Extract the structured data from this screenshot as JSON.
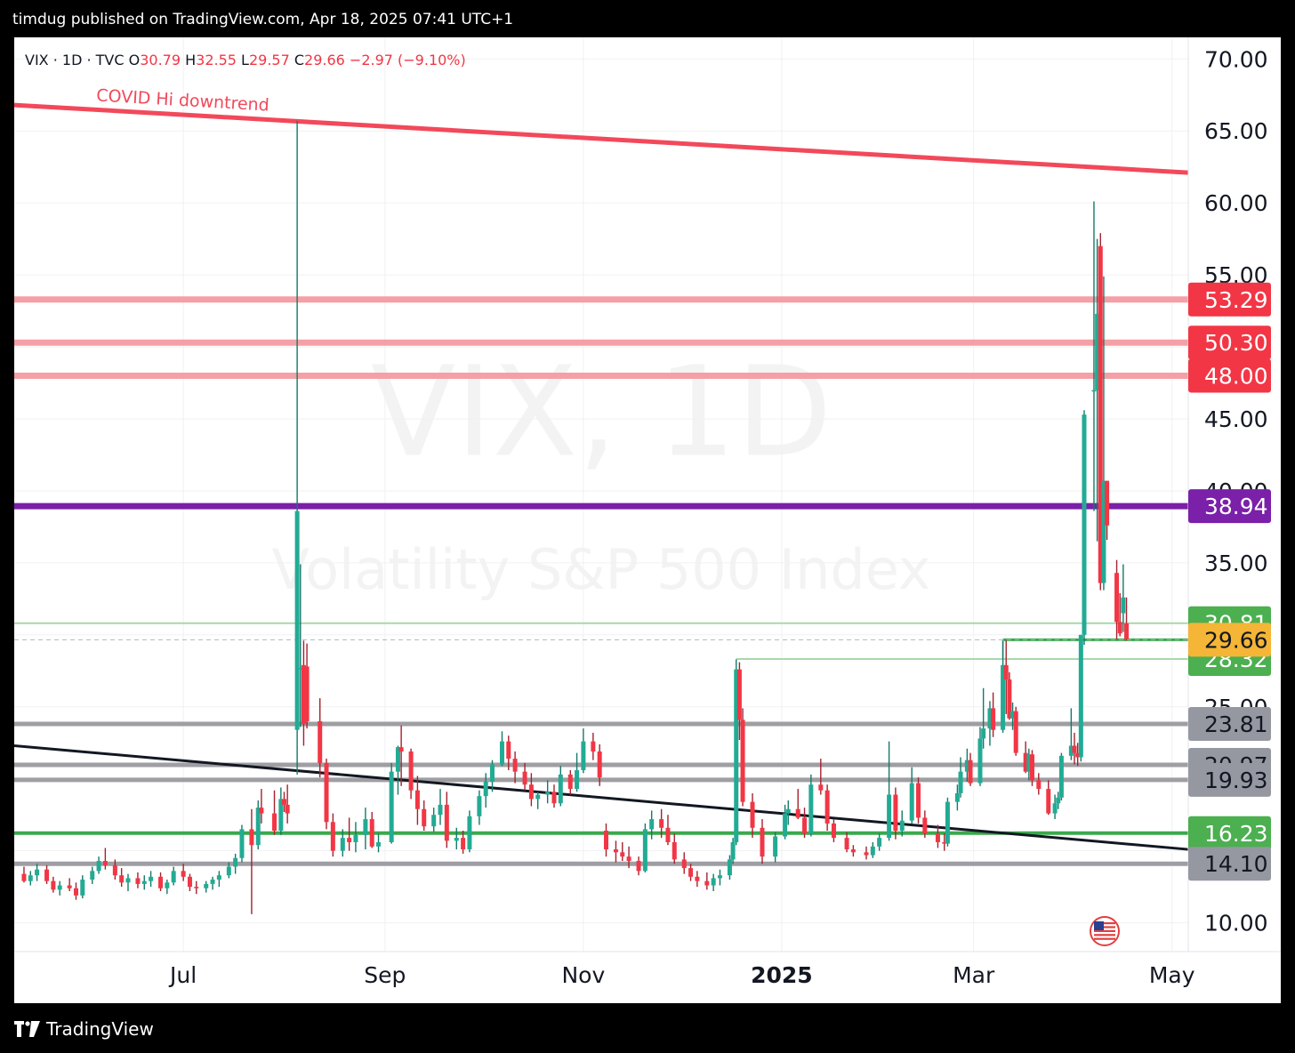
{
  "header": {
    "publisher": "timdug published on TradingView.com, Apr 18, 2025 07:41 UTC+1"
  },
  "footer": {
    "brand": "TradingView"
  },
  "colors": {
    "up": "#22ab94",
    "down": "#f23645",
    "upWick": "#137a69",
    "downWick": "#a7202e",
    "pink": "#f4a0a6",
    "red": "#f2495a",
    "purple": "#7b20a8",
    "greenLine": "#3aa84c",
    "lightGreen": "#a8d8ab",
    "gray": "#9e9ea3",
    "trendRed": "#f2495a",
    "black": "#131722",
    "goldBadge": "#f5b536",
    "greenBadge": "#4caf50",
    "redBadge": "#f23645",
    "purpleBadge": "#7b20a8",
    "grayBadge": "#9598a1"
  },
  "legend": {
    "symbol": "VIX · 1D · TVC",
    "o_label": "O",
    "o_value": "30.79",
    "h_label": "H",
    "h_value": "32.55",
    "l_label": "L",
    "l_value": "29.57",
    "c_label": "C",
    "c_value": "29.66",
    "change": "−2.97 (−9.10%)"
  },
  "watermark": {
    "line1": "VIX, 1D",
    "line2": "Volatility S&P 500 Index"
  },
  "icons": {
    "flag": "us-flag-icon",
    "logo": "tradingview-logo-icon"
  },
  "chart_data": {
    "type": "candlestick",
    "symbol": "VIX",
    "ylim": [
      8,
      71.5
    ],
    "y_ticks": [
      "10.00",
      "25.00",
      "30.00",
      "35.00",
      "40.00",
      "45.00",
      "55.00",
      "60.00",
      "65.00",
      "70.00"
    ],
    "x_ticks": [
      {
        "label": "Jul",
        "date": "2024-07-01",
        "bold": false
      },
      {
        "label": "Sep",
        "date": "2024-09-01",
        "bold": false
      },
      {
        "label": "Nov",
        "date": "2024-11-01",
        "bold": false
      },
      {
        "label": "2025",
        "date": "2025-01-01",
        "bold": true
      },
      {
        "label": "Mar",
        "date": "2025-03-01",
        "bold": false
      },
      {
        "label": "May",
        "date": "2025-05-01",
        "bold": false
      }
    ],
    "date_range": [
      "2024-05-10",
      "2025-05-06"
    ],
    "price_lines": [
      {
        "value": 53.29,
        "label": "53.29",
        "color": "pink",
        "badge": "redBadge"
      },
      {
        "value": 50.3,
        "label": "50.30",
        "color": "pink",
        "badge": "redBadge"
      },
      {
        "value": 48.0,
        "label": "48.00",
        "color": "pink",
        "badge": "redBadge"
      },
      {
        "value": 38.94,
        "label": "38.94",
        "color": "purple",
        "badge": "purpleBadge"
      },
      {
        "value": 30.81,
        "label": "30.81",
        "color": "lightGreen",
        "badge": "greenBadge"
      },
      {
        "value": 28.32,
        "label": "28.32",
        "color": "lightGreen",
        "badge": "greenBadge",
        "from": "2024-12-18"
      },
      {
        "value": 23.81,
        "label": "23.81",
        "color": "gray",
        "badge": "grayBadge"
      },
      {
        "value": 20.97,
        "label": "20.97",
        "color": "gray",
        "badge": "grayBadge"
      },
      {
        "value": 19.93,
        "label": "19.93",
        "color": "gray",
        "badge": "grayBadge"
      },
      {
        "value": 16.23,
        "label": "16.23",
        "color": "greenLine",
        "badge": "greenBadge"
      },
      {
        "value": 14.1,
        "label": "14.10",
        "color": "gray",
        "badge": "grayBadge"
      }
    ],
    "segments": [
      {
        "from": "2025-03-10",
        "to": "2025-05-06",
        "value": 29.66,
        "color": "greenLine"
      }
    ],
    "current_price": {
      "value": 29.66,
      "label": "29.66"
    },
    "trendlines": [
      {
        "name": "COVID Hi downtrend",
        "color": "trendRed",
        "p1": [
          "2024-05-10",
          66.8
        ],
        "p2": [
          "2025-05-06",
          62.1
        ]
      },
      {
        "name": "",
        "color": "black",
        "p1": [
          "2024-05-10",
          22.3
        ],
        "p2": [
          "2025-05-06",
          15.1
        ]
      }
    ],
    "candles": [
      [
        "2024-05-13",
        13.4,
        13.9,
        12.8,
        12.9
      ],
      [
        "2024-05-15",
        12.9,
        13.6,
        12.6,
        13.3
      ],
      [
        "2024-05-17",
        13.3,
        14.1,
        12.9,
        13.7
      ],
      [
        "2024-05-20",
        13.7,
        14.0,
        12.7,
        12.9
      ],
      [
        "2024-05-22",
        12.9,
        13.2,
        12.1,
        12.3
      ],
      [
        "2024-05-24",
        12.3,
        12.9,
        11.9,
        12.6
      ],
      [
        "2024-05-27",
        12.6,
        13.1,
        12.2,
        12.4
      ],
      [
        "2024-05-29",
        12.4,
        12.8,
        11.6,
        11.9
      ],
      [
        "2024-05-31",
        11.9,
        13.3,
        11.7,
        13.0
      ],
      [
        "2024-06-03",
        13.0,
        13.9,
        12.7,
        13.6
      ],
      [
        "2024-06-05",
        13.6,
        14.6,
        13.4,
        14.3
      ],
      [
        "2024-06-07",
        14.3,
        15.2,
        13.7,
        14.0
      ],
      [
        "2024-06-10",
        14.0,
        14.4,
        13.0,
        13.3
      ],
      [
        "2024-06-12",
        13.3,
        13.8,
        12.5,
        12.8
      ],
      [
        "2024-06-14",
        12.8,
        13.4,
        12.2,
        13.1
      ],
      [
        "2024-06-17",
        13.1,
        13.5,
        12.4,
        12.7
      ],
      [
        "2024-06-19",
        12.7,
        13.3,
        12.3,
        12.9
      ],
      [
        "2024-06-21",
        12.9,
        13.6,
        12.5,
        13.2
      ],
      [
        "2024-06-24",
        13.2,
        13.5,
        12.2,
        12.4
      ],
      [
        "2024-06-26",
        12.4,
        13.0,
        12.0,
        12.8
      ],
      [
        "2024-06-28",
        12.8,
        13.9,
        12.6,
        13.6
      ],
      [
        "2024-07-01",
        13.6,
        14.1,
        12.9,
        13.2
      ],
      [
        "2024-07-03",
        13.2,
        13.4,
        12.2,
        12.5
      ],
      [
        "2024-07-05",
        12.5,
        12.9,
        12.0,
        12.4
      ],
      [
        "2024-07-08",
        12.4,
        12.9,
        12.1,
        12.7
      ],
      [
        "2024-07-10",
        12.7,
        13.2,
        12.3,
        13.0
      ],
      [
        "2024-07-12",
        13.0,
        13.6,
        12.5,
        13.3
      ],
      [
        "2024-07-15",
        13.3,
        14.2,
        13.1,
        13.9
      ],
      [
        "2024-07-17",
        13.9,
        14.8,
        13.4,
        14.5
      ],
      [
        "2024-07-19",
        14.5,
        16.8,
        14.2,
        16.5
      ],
      [
        "2024-07-22",
        16.5,
        17.9,
        10.6,
        15.4
      ],
      [
        "2024-07-24",
        15.4,
        18.5,
        15.1,
        18.0
      ],
      [
        "2024-07-25",
        18.0,
        19.3,
        16.9,
        17.6
      ],
      [
        "2024-07-29",
        17.6,
        19.2,
        16.1,
        16.4
      ],
      [
        "2024-07-31",
        16.4,
        19.4,
        16.1,
        18.6
      ],
      [
        "2024-08-01",
        18.6,
        19.1,
        17.7,
        18.2
      ],
      [
        "2024-08-02",
        18.2,
        19.6,
        16.9,
        17.6
      ],
      [
        "2024-08-05",
        23.4,
        65.7,
        20.3,
        38.6
      ],
      [
        "2024-08-06",
        27.7,
        34.9,
        23.6,
        27.7
      ],
      [
        "2024-08-07",
        27.9,
        29.6,
        22.3,
        23.8
      ],
      [
        "2024-08-08",
        27.8,
        29.4,
        23.5,
        24.0
      ],
      [
        "2024-08-12",
        24.0,
        25.6,
        20.1,
        21.1
      ],
      [
        "2024-08-14",
        21.1,
        21.4,
        16.5,
        17.0
      ],
      [
        "2024-08-16",
        17.0,
        17.6,
        14.6,
        15.0
      ],
      [
        "2024-08-19",
        15.0,
        16.5,
        14.6,
        15.9
      ],
      [
        "2024-08-21",
        15.9,
        17.3,
        15.0,
        15.6
      ],
      [
        "2024-08-23",
        15.6,
        17.0,
        14.9,
        16.1
      ],
      [
        "2024-08-26",
        16.1,
        18.0,
        15.1,
        17.2
      ],
      [
        "2024-08-28",
        17.2,
        17.7,
        15.2,
        15.3
      ],
      [
        "2024-08-30",
        15.3,
        16.2,
        14.9,
        15.6
      ],
      [
        "2024-09-03",
        15.6,
        21.1,
        15.5,
        20.5
      ],
      [
        "2024-09-05",
        20.5,
        22.3,
        18.9,
        22.2
      ],
      [
        "2024-09-06",
        22.2,
        23.7,
        19.5,
        21.9
      ],
      [
        "2024-09-09",
        21.9,
        22.1,
        18.6,
        19.2
      ],
      [
        "2024-09-11",
        19.2,
        20.2,
        16.8,
        17.9
      ],
      [
        "2024-09-13",
        17.9,
        18.5,
        16.4,
        16.7
      ],
      [
        "2024-09-16",
        16.7,
        18.0,
        16.3,
        17.5
      ],
      [
        "2024-09-18",
        17.5,
        19.3,
        16.8,
        18.2
      ],
      [
        "2024-09-20",
        18.2,
        19.1,
        15.2,
        15.7
      ],
      [
        "2024-09-23",
        15.7,
        16.6,
        15.1,
        15.9
      ],
      [
        "2024-09-25",
        15.9,
        16.4,
        14.8,
        15.1
      ],
      [
        "2024-09-27",
        15.1,
        17.8,
        14.9,
        17.4
      ],
      [
        "2024-09-30",
        17.4,
        19.2,
        16.8,
        18.8
      ],
      [
        "2024-10-02",
        18.8,
        20.4,
        18.0,
        19.8
      ],
      [
        "2024-10-04",
        19.8,
        21.3,
        19.1,
        21.0
      ],
      [
        "2024-10-07",
        21.0,
        23.3,
        20.9,
        22.6
      ],
      [
        "2024-10-09",
        22.6,
        23.0,
        20.6,
        21.4
      ],
      [
        "2024-10-11",
        21.4,
        21.9,
        19.7,
        20.5
      ],
      [
        "2024-10-14",
        20.5,
        21.1,
        19.2,
        19.6
      ],
      [
        "2024-10-16",
        19.6,
        20.4,
        18.1,
        18.6
      ],
      [
        "2024-10-18",
        18.6,
        19.1,
        17.9,
        18.9
      ],
      [
        "2024-10-21",
        18.9,
        19.9,
        18.3,
        19.1
      ],
      [
        "2024-10-23",
        19.1,
        19.6,
        18.0,
        18.3
      ],
      [
        "2024-10-25",
        18.3,
        20.9,
        18.1,
        20.3
      ],
      [
        "2024-10-28",
        20.3,
        20.6,
        18.9,
        19.3
      ],
      [
        "2024-10-30",
        19.3,
        21.8,
        19.1,
        20.6
      ],
      [
        "2024-11-01",
        20.6,
        23.5,
        20.4,
        22.6
      ],
      [
        "2024-11-04",
        22.6,
        23.2,
        21.3,
        21.9
      ],
      [
        "2024-11-06",
        21.9,
        22.4,
        19.5,
        20.1
      ],
      [
        "2024-11-08",
        16.4,
        16.9,
        14.6,
        15.1
      ],
      [
        "2024-11-11",
        15.1,
        15.7,
        14.2,
        14.9
      ],
      [
        "2024-11-13",
        14.9,
        15.6,
        14.3,
        14.6
      ],
      [
        "2024-11-15",
        14.6,
        15.3,
        13.8,
        14.3
      ],
      [
        "2024-11-18",
        14.3,
        14.6,
        13.3,
        13.6
      ],
      [
        "2024-11-20",
        13.6,
        16.9,
        13.5,
        16.5
      ],
      [
        "2024-11-22",
        16.5,
        17.8,
        15.8,
        17.2
      ],
      [
        "2024-11-25",
        17.2,
        17.9,
        15.9,
        16.6
      ],
      [
        "2024-11-27",
        16.6,
        17.5,
        15.4,
        15.6
      ],
      [
        "2024-11-29",
        15.6,
        16.2,
        14.1,
        14.4
      ],
      [
        "2024-12-02",
        14.4,
        14.9,
        13.4,
        13.8
      ],
      [
        "2024-12-04",
        13.8,
        14.1,
        12.9,
        13.2
      ],
      [
        "2024-12-06",
        13.2,
        13.6,
        12.5,
        12.9
      ],
      [
        "2024-12-09",
        12.9,
        13.5,
        12.3,
        12.6
      ],
      [
        "2024-12-11",
        12.6,
        13.4,
        12.2,
        13.1
      ],
      [
        "2024-12-13",
        13.1,
        13.7,
        12.6,
        13.3
      ],
      [
        "2024-12-16",
        13.3,
        14.7,
        13.0,
        14.4
      ],
      [
        "2024-12-17",
        14.4,
        15.9,
        14.1,
        15.6
      ],
      [
        "2024-12-18",
        15.6,
        28.3,
        15.4,
        27.6
      ],
      [
        "2024-12-19",
        27.6,
        28.1,
        22.7,
        24.1
      ],
      [
        "2024-12-20",
        24.1,
        24.9,
        18.1,
        18.4
      ],
      [
        "2024-12-23",
        18.4,
        19.0,
        15.9,
        16.6
      ],
      [
        "2024-12-26",
        16.6,
        17.2,
        14.1,
        14.6
      ],
      [
        "2024-12-30",
        14.6,
        16.3,
        14.2,
        16.0
      ],
      [
        "2025-01-02",
        16.0,
        18.2,
        15.8,
        17.6
      ],
      [
        "2025-01-03",
        17.6,
        18.5,
        16.8,
        17.9
      ],
      [
        "2025-01-06",
        17.9,
        19.3,
        17.2,
        17.3
      ],
      [
        "2025-01-08",
        17.3,
        18.0,
        15.9,
        16.2
      ],
      [
        "2025-01-10",
        16.2,
        20.3,
        16.0,
        19.6
      ],
      [
        "2025-01-13",
        19.6,
        21.4,
        18.9,
        19.2
      ],
      [
        "2025-01-15",
        19.2,
        19.6,
        16.4,
        16.9
      ],
      [
        "2025-01-17",
        16.9,
        17.2,
        15.6,
        15.9
      ],
      [
        "2025-01-21",
        15.9,
        16.3,
        14.9,
        15.1
      ],
      [
        "2025-01-23",
        15.1,
        15.4,
        14.6,
        14.9
      ],
      [
        "2025-01-27",
        14.9,
        15.3,
        14.4,
        14.7
      ],
      [
        "2025-01-29",
        14.7,
        15.6,
        14.5,
        15.3
      ],
      [
        "2025-01-31",
        15.3,
        16.2,
        15.0,
        15.9
      ],
      [
        "2025-02-03",
        15.9,
        22.6,
        15.7,
        18.9
      ],
      [
        "2025-02-05",
        18.9,
        19.4,
        15.8,
        16.4
      ],
      [
        "2025-02-07",
        16.4,
        17.8,
        16.0,
        17.1
      ],
      [
        "2025-02-10",
        17.1,
        20.8,
        16.9,
        19.7
      ],
      [
        "2025-02-12",
        19.7,
        20.1,
        16.9,
        17.3
      ],
      [
        "2025-02-14",
        17.3,
        17.8,
        15.9,
        16.2
      ],
      [
        "2025-02-18",
        16.2,
        16.8,
        15.2,
        15.6
      ],
      [
        "2025-02-20",
        15.6,
        16.2,
        15.0,
        15.5
      ],
      [
        "2025-02-21",
        15.5,
        18.7,
        15.3,
        18.4
      ],
      [
        "2025-02-24",
        18.4,
        19.6,
        17.8,
        19.0
      ],
      [
        "2025-02-25",
        19.0,
        21.5,
        18.7,
        20.5
      ],
      [
        "2025-02-27",
        20.5,
        22.1,
        19.8,
        21.3
      ],
      [
        "2025-02-28",
        21.3,
        21.8,
        19.5,
        19.7
      ],
      [
        "2025-03-03",
        19.7,
        23.6,
        19.5,
        22.8
      ],
      [
        "2025-03-04",
        22.8,
        26.3,
        22.1,
        23.5
      ],
      [
        "2025-03-06",
        23.5,
        25.4,
        22.3,
        24.9
      ],
      [
        "2025-03-07",
        24.9,
        26.0,
        22.9,
        23.4
      ],
      [
        "2025-03-10",
        23.4,
        29.6,
        23.2,
        27.9
      ],
      [
        "2025-03-11",
        27.9,
        29.6,
        24.5,
        26.9
      ],
      [
        "2025-03-12",
        26.9,
        27.4,
        24.1,
        24.2
      ],
      [
        "2025-03-13",
        24.2,
        25.3,
        23.4,
        24.7
      ],
      [
        "2025-03-14",
        24.7,
        25.0,
        21.6,
        21.8
      ],
      [
        "2025-03-17",
        21.8,
        22.6,
        20.4,
        20.5
      ],
      [
        "2025-03-18",
        20.5,
        22.1,
        19.9,
        21.7
      ],
      [
        "2025-03-19",
        21.7,
        22.0,
        19.5,
        19.9
      ],
      [
        "2025-03-21",
        19.9,
        20.4,
        18.9,
        19.3
      ],
      [
        "2025-03-24",
        19.3,
        19.9,
        17.5,
        17.6
      ],
      [
        "2025-03-26",
        17.6,
        18.9,
        17.2,
        18.3
      ],
      [
        "2025-03-27",
        18.3,
        19.1,
        17.9,
        18.7
      ],
      [
        "2025-03-28",
        18.7,
        21.8,
        18.5,
        21.6
      ],
      [
        "2025-03-31",
        21.6,
        24.9,
        21.3,
        22.3
      ],
      [
        "2025-04-01",
        22.3,
        23.2,
        21.0,
        21.8
      ],
      [
        "2025-04-02",
        21.8,
        22.5,
        20.9,
        21.5
      ],
      [
        "2025-04-03",
        21.5,
        30.0,
        21.2,
        30.0
      ],
      [
        "2025-04-04",
        30.0,
        45.6,
        29.3,
        45.3
      ],
      [
        "2025-04-07",
        46.9,
        60.1,
        38.6,
        47.0
      ],
      [
        "2025-04-08",
        47.0,
        57.5,
        36.5,
        52.3
      ],
      [
        "2025-04-09",
        57.0,
        57.9,
        33.1,
        33.6
      ],
      [
        "2025-04-10",
        33.6,
        54.9,
        33.1,
        40.7
      ],
      [
        "2025-04-11",
        40.7,
        40.7,
        36.6,
        37.6
      ],
      [
        "2025-04-14",
        34.3,
        35.2,
        29.7,
        30.9
      ],
      [
        "2025-04-15",
        30.9,
        32.9,
        29.9,
        30.1
      ],
      [
        "2025-04-16",
        31.5,
        34.9,
        30.2,
        32.6
      ],
      [
        "2025-04-17",
        30.8,
        32.6,
        29.6,
        29.7
      ]
    ]
  }
}
